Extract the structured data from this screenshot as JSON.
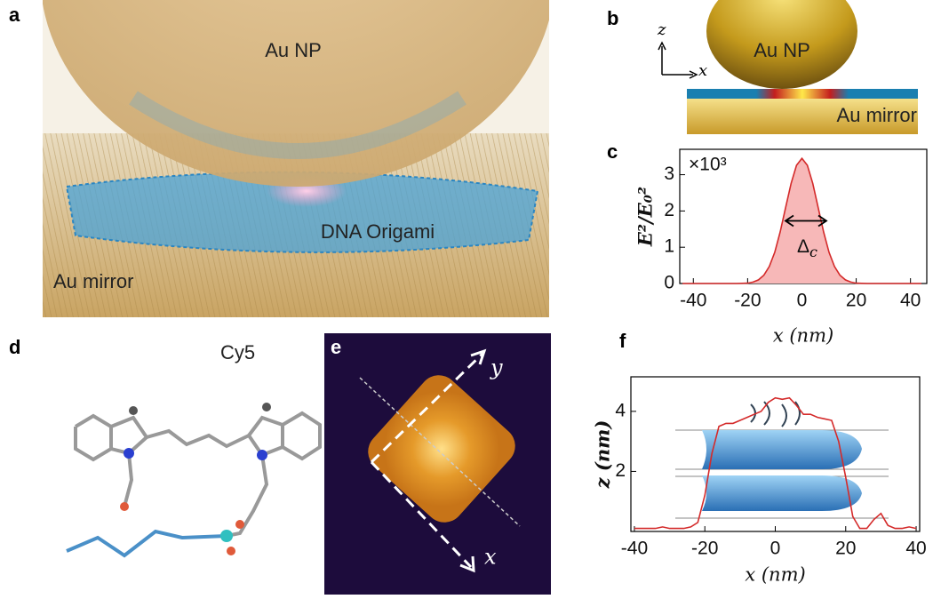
{
  "panel_a": {
    "letter": "a",
    "np_label": "Au NP",
    "origami_label": "DNA Origami",
    "mirror_label": "Au mirror"
  },
  "panel_b": {
    "letter": "b",
    "np_label": "Au NP",
    "mirror_label": "Au mirror",
    "z_axis": "z",
    "x_axis": "x"
  },
  "panel_c": {
    "letter": "c"
  },
  "panel_d": {
    "letter": "d",
    "molecule": "Cy5"
  },
  "panel_e": {
    "letter": "e",
    "y_axis": "y",
    "x_axis": "x"
  },
  "panel_f": {
    "letter": "f"
  },
  "chart_data": [
    {
      "type": "area",
      "annotation": "×10³",
      "width_symbol": "Δ",
      "width_subscript": "c",
      "y_label": "E²/E₀²",
      "x_label": "x (nm)",
      "x": [
        -44,
        -40,
        -36,
        -32,
        -28,
        -24,
        -20,
        -18,
        -16,
        -14,
        -12,
        -10,
        -8,
        -6,
        -4,
        -2,
        0,
        2,
        4,
        6,
        8,
        10,
        12,
        14,
        16,
        18,
        20,
        24,
        28,
        32,
        36,
        40,
        44
      ],
      "values": [
        0,
        0,
        0,
        0,
        0,
        0,
        0.01,
        0.04,
        0.1,
        0.23,
        0.47,
        0.86,
        1.42,
        2.09,
        2.76,
        3.26,
        3.45,
        3.26,
        2.76,
        2.09,
        1.42,
        0.86,
        0.47,
        0.23,
        0.1,
        0.04,
        0.01,
        0,
        0,
        0,
        0,
        0,
        0
      ],
      "color": "#d42a2a",
      "fill_color": "#f7b8b8",
      "xlim": [
        -45,
        46
      ],
      "ylim": [
        0,
        3.7
      ],
      "xticks": [
        -40,
        -20,
        0,
        20,
        40
      ],
      "yticks": [
        0,
        1,
        2,
        3
      ]
    },
    {
      "type": "line",
      "y_label": "z (nm)",
      "x_label": "x (nm)",
      "x": [
        -40,
        -38,
        -36,
        -34,
        -32,
        -30,
        -28,
        -26,
        -24,
        -22,
        -20,
        -18,
        -16,
        -14,
        -12,
        -10,
        -8,
        -6,
        -4,
        -2,
        0,
        2,
        4,
        6,
        8,
        10,
        12,
        14,
        16,
        18,
        20,
        22,
        24,
        26,
        28,
        30,
        32,
        34,
        36,
        38,
        40
      ],
      "values": [
        0.1,
        0.1,
        0.1,
        0.1,
        0.15,
        0.1,
        0.1,
        0.1,
        0.15,
        0.3,
        1.2,
        2.6,
        3.5,
        3.6,
        3.6,
        3.7,
        3.8,
        3.9,
        4.0,
        4.3,
        4.45,
        4.4,
        4.45,
        4.2,
        3.9,
        3.9,
        3.8,
        3.75,
        3.7,
        3.0,
        1.8,
        0.5,
        0.1,
        0.1,
        0.4,
        0.6,
        0.2,
        0.1,
        0.1,
        0.15,
        0.1
      ],
      "color": "#d42a2a",
      "xlim": [
        -41,
        41
      ],
      "ylim": [
        0,
        5.15
      ],
      "xticks": [
        -40,
        -20,
        0,
        20,
        40
      ],
      "yticks": [
        2,
        4
      ]
    }
  ]
}
